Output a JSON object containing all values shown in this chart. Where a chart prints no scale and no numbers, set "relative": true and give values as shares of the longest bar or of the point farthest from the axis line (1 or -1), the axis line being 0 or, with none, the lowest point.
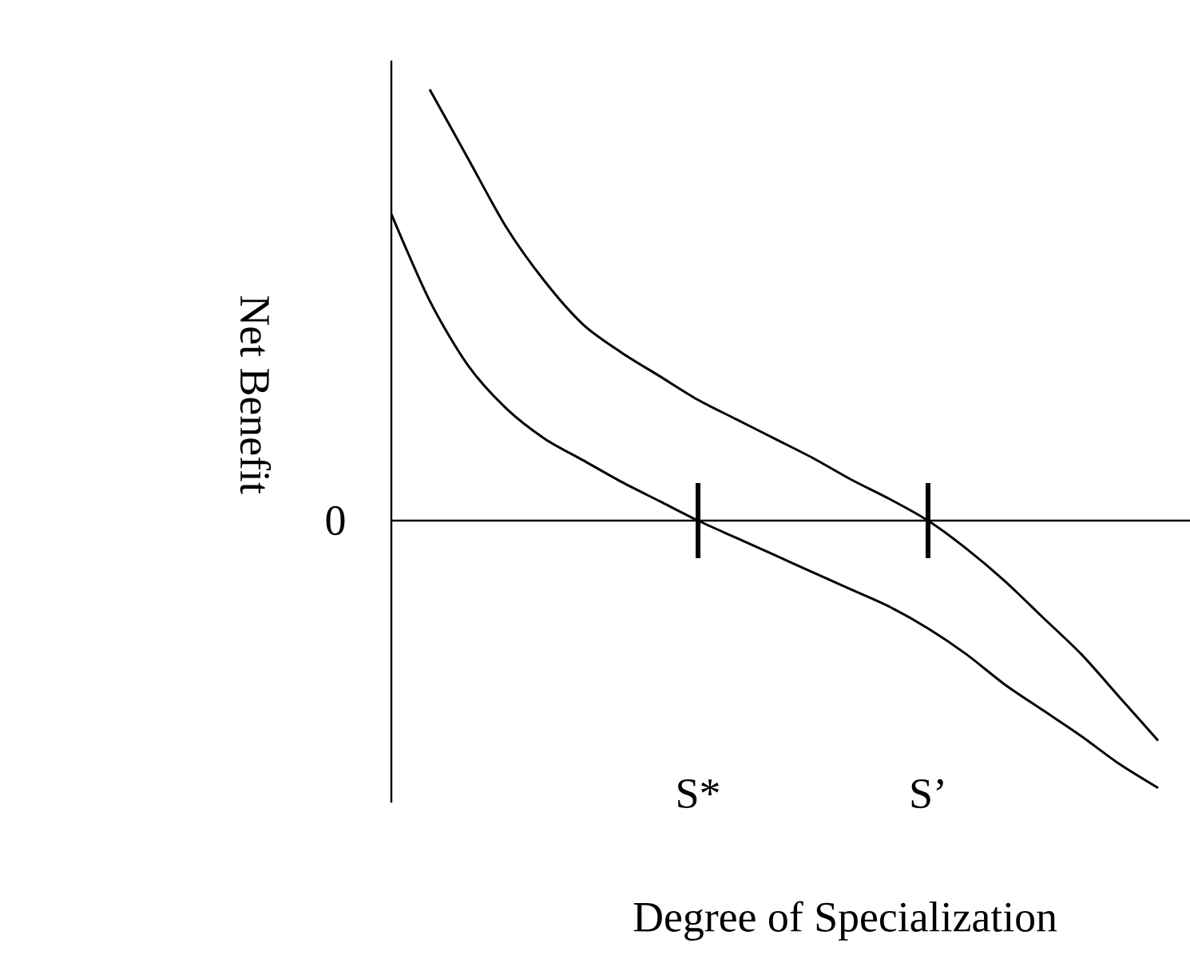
{
  "chart_data": {
    "type": "line",
    "relative": true,
    "xlabel": "Degree of Specialization",
    "ylabel": "Net Benefit",
    "categories": [
      null,
      null,
      null,
      null,
      null,
      null,
      null,
      null,
      "S*",
      null,
      null,
      null,
      null,
      null,
      "S’",
      null,
      null,
      null,
      null,
      null,
      null
    ],
    "annotations": [
      "0"
    ],
    "series": [
      {
        "color": "#000000",
        "values": [
          null,
          1.0,
          0.84,
          0.68,
          0.555,
          0.455,
          0.39,
          0.335,
          0.28,
          0.235,
          0.19,
          0.145,
          0.095,
          0.05,
          0,
          -0.065,
          -0.14,
          -0.225,
          -0.31,
          -0.41,
          -0.51
        ]
      },
      {
        "color": "#000000",
        "values": [
          0.711,
          0.51,
          0.36,
          0.26,
          0.19,
          0.14,
          0.09,
          0.045,
          0,
          -0.04,
          -0.08,
          -0.12,
          -0.16,
          -0.2,
          -0.25,
          -0.31,
          -0.38,
          -0.44,
          -0.5,
          -0.565,
          -0.62
        ]
      }
    ]
  }
}
